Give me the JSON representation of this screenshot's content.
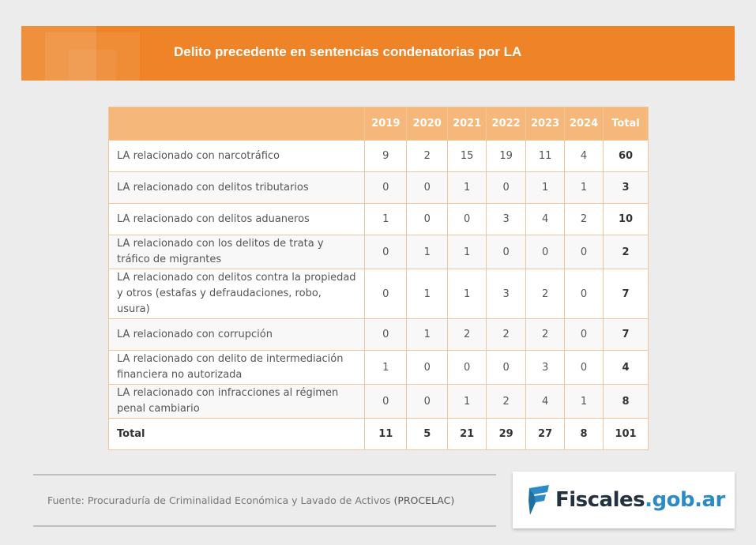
{
  "banner": {
    "title": "Delito precedente en sentencias condenatorias por LA"
  },
  "table": {
    "headers": [
      "",
      "2019",
      "2020",
      "2021",
      "2022",
      "2023",
      "2024",
      "Total"
    ],
    "rows": [
      {
        "label": "LA relacionado con narcotráfico",
        "values": [
          "9",
          "2",
          "15",
          "19",
          "11",
          "4"
        ],
        "total": "60"
      },
      {
        "label": "LA relacionado con delitos tributarios",
        "values": [
          "0",
          "0",
          "1",
          "0",
          "1",
          "1"
        ],
        "total": "3"
      },
      {
        "label": "LA relacionado con delitos aduaneros",
        "values": [
          "1",
          "0",
          "0",
          "3",
          "4",
          "2"
        ],
        "total": "10"
      },
      {
        "label": "LA relacionado con los delitos de trata y tráfico de migrantes",
        "values": [
          "0",
          "1",
          "1",
          "0",
          "0",
          "0"
        ],
        "total": "2"
      },
      {
        "label": "LA relacionado con delitos contra la propiedad y otros (estafas y defraudaciones, robo, usura)",
        "values": [
          "0",
          "1",
          "1",
          "3",
          "2",
          "0"
        ],
        "total": "7"
      },
      {
        "label": "LA relacionado con corrupción",
        "values": [
          "0",
          "1",
          "2",
          "2",
          "2",
          "0"
        ],
        "total": "7"
      },
      {
        "label": "LA relacionado con delito de intermediación financiera no autorizada",
        "values": [
          "1",
          "0",
          "0",
          "0",
          "3",
          "0"
        ],
        "total": "4"
      },
      {
        "label": "LA relacionado con infracciones al régimen penal cambiario",
        "values": [
          "0",
          "0",
          "1",
          "2",
          "4",
          "1"
        ],
        "total": "8"
      }
    ],
    "footer": {
      "label": "Total",
      "values": [
        "11",
        "5",
        "21",
        "29",
        "27",
        "8"
      ],
      "total": "101"
    }
  },
  "source": {
    "prefix": "Fuente: Procuraduría de Criminalidad Económica y Lavado de Activos",
    "acronym": "(PROCELAC)"
  },
  "logo": {
    "name": "Fiscales",
    "domain": ".gob.ar",
    "icon": "fiscales-flag-icon"
  },
  "colors": {
    "accent": "#ee8427",
    "header": "#f6b77a",
    "logo_blue": "#2a8bc6"
  }
}
